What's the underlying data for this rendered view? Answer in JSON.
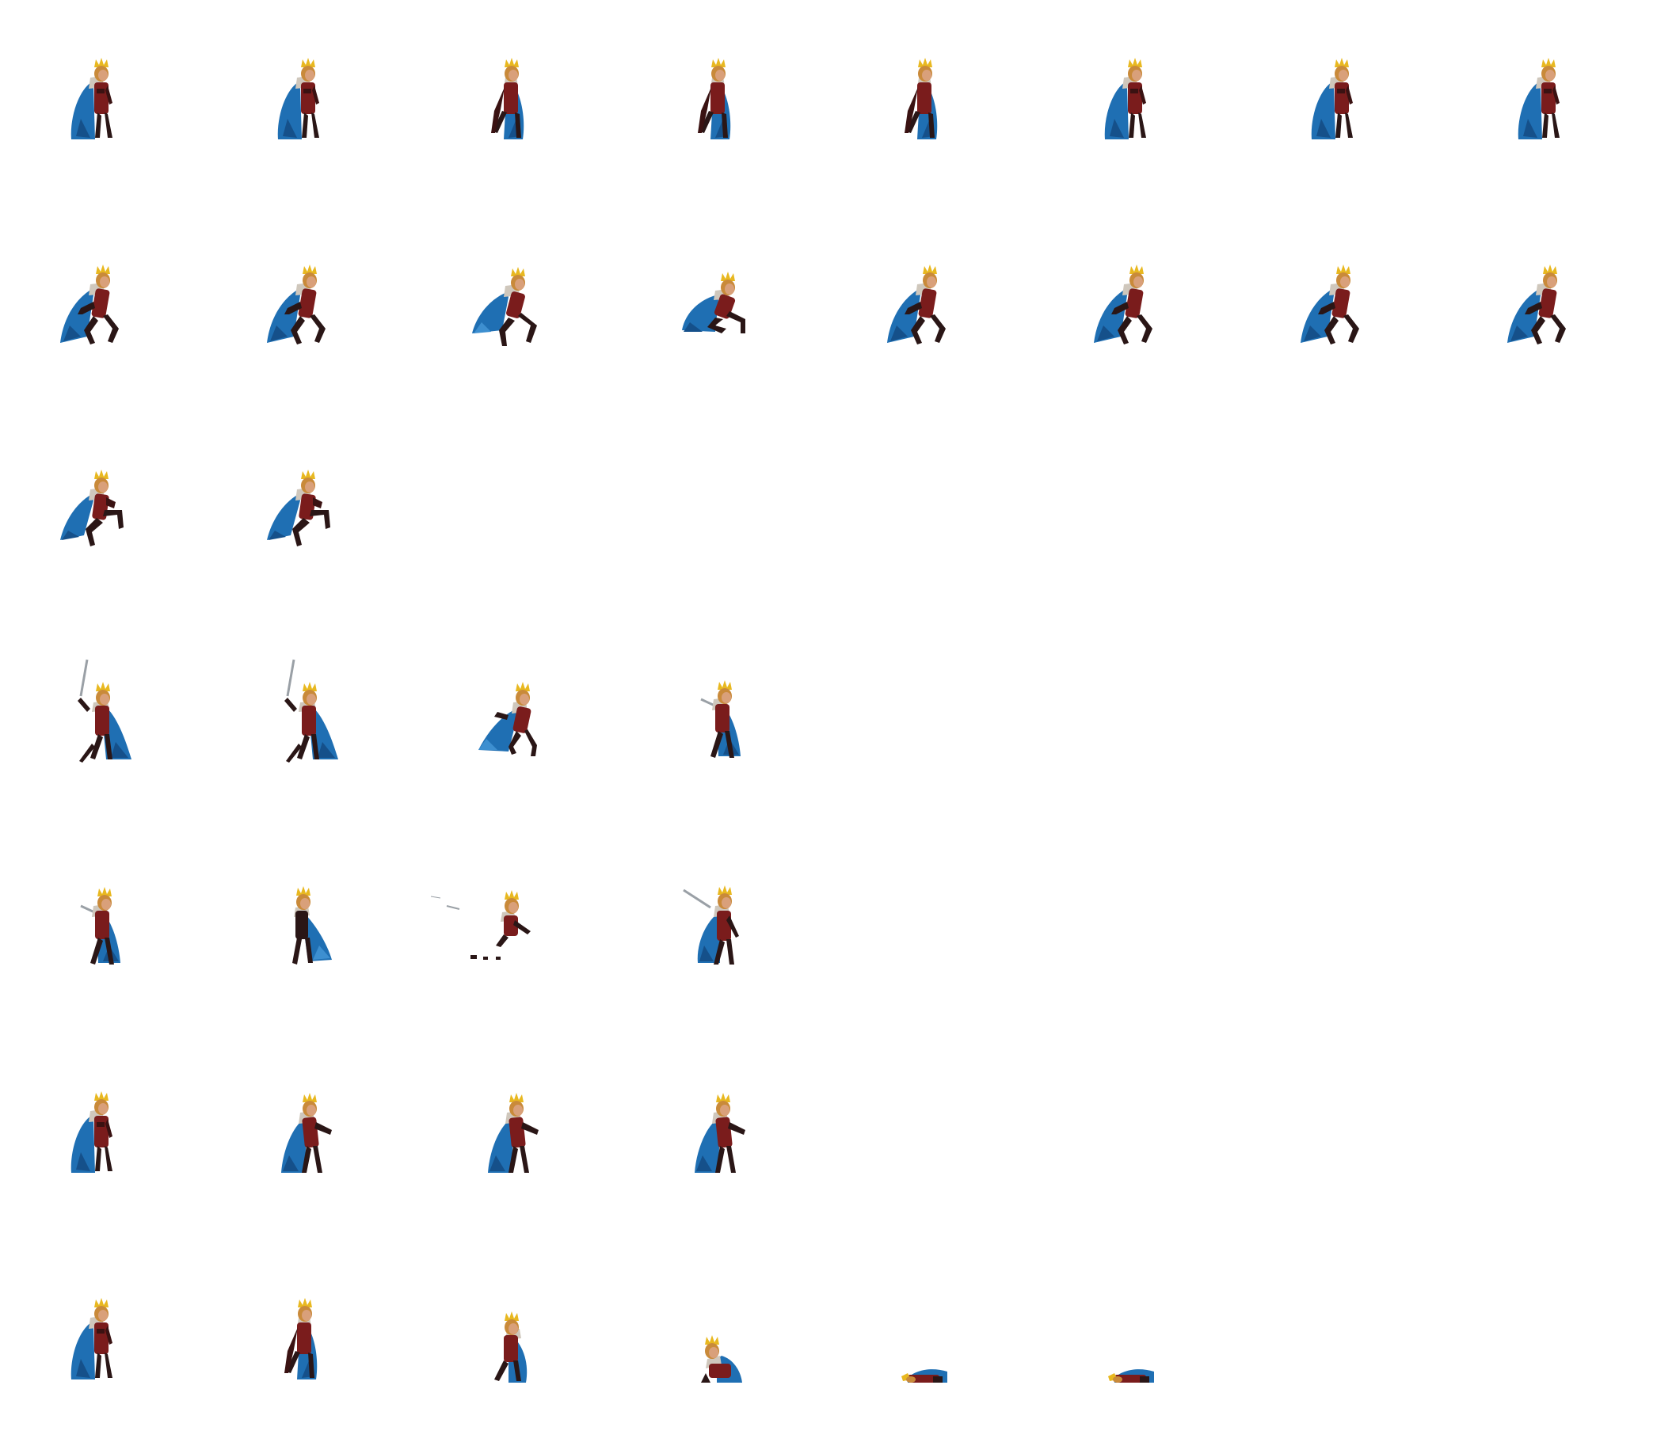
{
  "sprite_sheet": {
    "background": "#ffffff",
    "palette": {
      "cape": "#1f6fb3",
      "cape_dark": "#15508a",
      "cape_light": "#3d8fd0",
      "body": "#7a1c1c",
      "body_dark": "#3a1212",
      "legs": "#2a1616",
      "skin": "#d9a07a",
      "hair": "#c98a3a",
      "crown": "#e8b820",
      "fur": "#cfc7bc",
      "sword": "#9aa0a6"
    },
    "rows": [
      {
        "name": "idle",
        "frames": [
          "stand",
          "stand",
          "stand-b",
          "stand-b",
          "stand-b",
          "stand",
          "stand",
          "stand"
        ]
      },
      {
        "name": "run",
        "frames": [
          "run",
          "run",
          "run-low",
          "crouch",
          "run",
          "run",
          "run",
          "run"
        ]
      },
      {
        "name": "jump",
        "frames": [
          "jump",
          "jump"
        ]
      },
      {
        "name": "attack-1",
        "frames": [
          "sword-up",
          "sword-up",
          "lunge",
          "slash"
        ]
      },
      {
        "name": "attack-2",
        "frames": [
          "slash",
          "spin",
          "dash",
          "thrust"
        ]
      },
      {
        "name": "hurt",
        "frames": [
          "stand",
          "recoil",
          "recoil",
          "recoil"
        ]
      },
      {
        "name": "death",
        "frames": [
          "stand",
          "stand-b",
          "kneel",
          "fall",
          "lie",
          "lie"
        ]
      }
    ]
  }
}
